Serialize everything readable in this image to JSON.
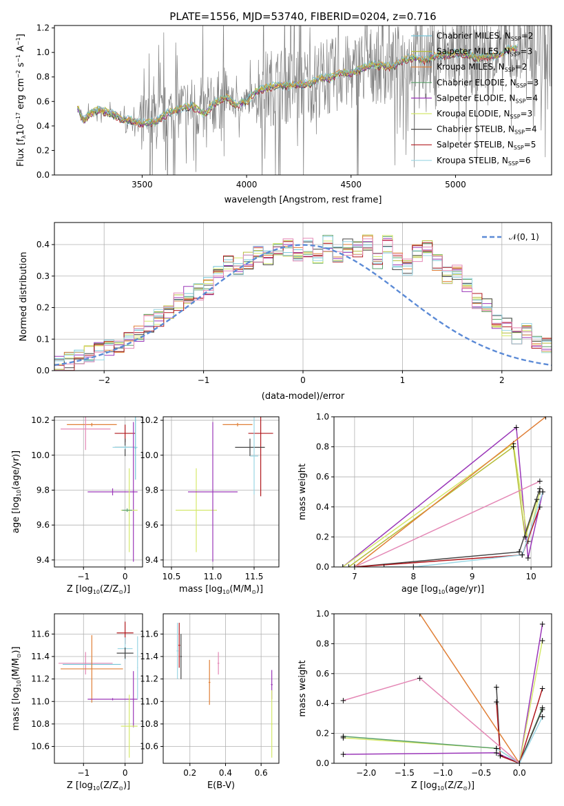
{
  "title": "PLATE=1556, MJD=53740, FIBERID=0204, z=0.716",
  "colors": {
    "Chabrier MILES": "#74c4d6",
    "Salpeter MILES": "#b5bd3a",
    "Kroupa MILES": "#e07f36",
    "Chabrier ELODIE": "#5aa06a",
    "Salpeter ELODIE": "#9a36b8",
    "Kroupa ELODIE": "#d4e86a",
    "Chabrier STELIB": "#444444",
    "Salpeter STELIB": "#b0171c",
    "Kroupa STELIB": "#9ad6e4",
    "data": "#7f7f7f",
    "gauss": "#5b8ad6",
    "pink": "#e487b5"
  },
  "chart_data": [
    {
      "type": "line",
      "title": "PLATE=1556, MJD=53740, FIBERID=0204, z=0.716",
      "xlabel": "wavelength [Angstrom, rest frame]",
      "ylabel_main": "Flux [f",
      "ylabel_sub": "λ",
      "ylabel_rest": "10",
      "ylabel_exp": "−17",
      "ylabel_units": " erg cm",
      "ylabel_exp2": "−2",
      "ylabel_s": " s",
      "ylabel_exp3": "−1",
      "ylabel_A": " A",
      "ylabel_exp4": "−1",
      "ylabel_end": "]",
      "xlim": [
        3080,
        5460
      ],
      "ylim": [
        0,
        1.22
      ],
      "xticks": [
        3500,
        4000,
        4500,
        5000
      ],
      "xtick_labels": [
        "3500",
        "4000",
        "4500",
        "5000"
      ],
      "yticks": [
        0,
        0.2,
        0.4,
        0.6,
        0.8,
        1.0,
        1.2
      ],
      "ytick_labels": [
        "0.0",
        "0.2",
        "0.4",
        "0.6",
        "0.8",
        "1.0",
        "1.2"
      ],
      "model_x": [
        3190,
        3220,
        3250,
        3300,
        3350,
        3400,
        3450,
        3500,
        3560,
        3620,
        3680,
        3740,
        3800,
        3850,
        3900,
        3950,
        4000,
        4050,
        4100,
        4150,
        4200,
        4250,
        4300,
        4350,
        4400,
        4450,
        4500,
        4550,
        4600,
        4650,
        4700,
        4750,
        4800,
        4850,
        4900,
        4950,
        5000,
        5050,
        5100,
        5150,
        5200,
        5250,
        5300
      ],
      "model_y": [
        0.55,
        0.44,
        0.5,
        0.53,
        0.5,
        0.46,
        0.44,
        0.42,
        0.43,
        0.5,
        0.54,
        0.56,
        0.5,
        0.59,
        0.64,
        0.57,
        0.6,
        0.69,
        0.71,
        0.73,
        0.73,
        0.74,
        0.74,
        0.79,
        0.79,
        0.84,
        0.82,
        0.87,
        0.9,
        0.89,
        0.88,
        0.94,
        0.96,
        0.93,
        0.97,
        0.98,
        0.99,
        0.99,
        0.95,
        0.97,
        0.97,
        1.02,
        1.03
      ],
      "legend": [
        {
          "name": "Chabrier MILES",
          "nssp": "2"
        },
        {
          "name": "Salpeter MILES",
          "nssp": "3"
        },
        {
          "name": "Kroupa MILES",
          "nssp": "2"
        },
        {
          "name": "Chabrier ELODIE",
          "nssp": "3"
        },
        {
          "name": "Salpeter ELODIE",
          "nssp": "4"
        },
        {
          "name": "Kroupa ELODIE",
          "nssp": "3"
        },
        {
          "name": "Chabrier STELIB",
          "nssp": "4"
        },
        {
          "name": "Salpeter STELIB",
          "nssp": "5"
        },
        {
          "name": "Kroupa STELIB",
          "nssp": "6"
        }
      ],
      "legend_label_n": "N",
      "legend_label_sub": "SSP",
      "legend_placement": "upper-right"
    },
    {
      "type": "bar",
      "xlabel": "(data-model)/error",
      "ylabel": "Normed distribution",
      "xlim": [
        -2.5,
        2.5
      ],
      "ylim": [
        0,
        0.47
      ],
      "xticks": [
        -2,
        -1,
        0,
        1,
        2
      ],
      "xtick_labels": [
        "−2",
        "−1",
        "0",
        "1",
        "2"
      ],
      "yticks": [
        0,
        0.1,
        0.2,
        0.3,
        0.4
      ],
      "ytick_labels": [
        "0.0",
        "0.1",
        "0.2",
        "0.3",
        "0.4"
      ],
      "bin_width": 0.1,
      "bin_start": -2.5,
      "hist_values": [
        0.02,
        0.03,
        0.04,
        0.05,
        0.06,
        0.07,
        0.08,
        0.1,
        0.12,
        0.15,
        0.17,
        0.19,
        0.22,
        0.24,
        0.25,
        0.27,
        0.31,
        0.34,
        0.33,
        0.35,
        0.37,
        0.36,
        0.38,
        0.39,
        0.37,
        0.39,
        0.36,
        0.4,
        0.37,
        0.39,
        0.38,
        0.41,
        0.35,
        0.4,
        0.35,
        0.33,
        0.37,
        0.39,
        0.34,
        0.3,
        0.31,
        0.28,
        0.22,
        0.2,
        0.16,
        0.14,
        0.11,
        0.12,
        0.1,
        0.08
      ],
      "gauss_label": "𝒩(0, 1)",
      "legend_placement": "upper-right",
      "grid": true
    },
    {
      "type": "scatter",
      "xlabel": "Z [log",
      "xlabel_sub": "10",
      "xlabel_rest": "(Z/Z",
      "xlabel_sun": "⊙",
      "xlabel_end": ")]",
      "ylabel": "age  [log",
      "ylabel_sub": "10",
      "ylabel_rest": "(age/yr)]",
      "xlim": [
        -1.7,
        0.42
      ],
      "ylim": [
        9.36,
        10.22
      ],
      "xticks": [
        -1,
        0
      ],
      "xtick_labels": [
        "−1",
        "0"
      ],
      "yticks": [
        9.4,
        9.6,
        9.8,
        10.0,
        10.2
      ],
      "ytick_labels": [
        "9.4",
        "9.6",
        "9.8",
        "10.0",
        "10.2"
      ],
      "grid": true
    },
    {
      "type": "scatter",
      "xlabel": "mass [log",
      "xlabel_sub": "10",
      "xlabel_rest": "(M/M",
      "xlabel_sun": "⊙",
      "xlabel_end": ")]",
      "xlim": [
        10.4,
        11.8
      ],
      "ylim": [
        9.36,
        10.22
      ],
      "xticks": [
        10.5,
        11.0,
        11.5
      ],
      "xtick_labels": [
        "10.5",
        "11.0",
        "11.5"
      ],
      "yticks": [
        9.4,
        9.6,
        9.8,
        10.0,
        10.2
      ],
      "ytick_labels": [
        "9.4",
        "9.6",
        "9.8",
        "10.0",
        "10.2"
      ],
      "grid": true
    },
    {
      "type": "line",
      "xlabel": "age  [log",
      "xlabel_sub": "10",
      "xlabel_rest": "(age/yr)]",
      "ylabel": "mass weight",
      "xlim": [
        6.65,
        10.35
      ],
      "ylim": [
        0,
        1.0
      ],
      "xticks": [
        7,
        8,
        9,
        10
      ],
      "xtick_labels": [
        "7",
        "8",
        "9",
        "10"
      ],
      "yticks": [
        0,
        0.2,
        0.4,
        0.6,
        0.8,
        1.0
      ],
      "ytick_labels": [
        "0.0",
        "0.2",
        "0.4",
        "0.6",
        "0.8",
        "1.0"
      ],
      "grid": true
    },
    {
      "type": "scatter",
      "xlabel": "Z [log",
      "xlabel_sub": "10",
      "xlabel_rest": "(Z/Z",
      "xlabel_sun": "⊙",
      "xlabel_end": ")]",
      "ylabel": "mass [log",
      "ylabel_sub": "10",
      "ylabel_rest": "(M/M",
      "ylabel_sun": "⊙",
      "ylabel_end": ")]",
      "xlim": [
        -1.7,
        0.42
      ],
      "ylim": [
        10.45,
        11.78
      ],
      "xticks": [
        -1,
        0
      ],
      "xtick_labels": [
        "−1",
        "0"
      ],
      "yticks": [
        10.6,
        10.8,
        11.0,
        11.2,
        11.4,
        11.6
      ],
      "ytick_labels": [
        "10.6",
        "10.8",
        "11.0",
        "11.2",
        "11.4",
        "11.6"
      ],
      "grid": true
    },
    {
      "type": "scatter",
      "xlabel": "E(B-V)",
      "xlim": [
        0.05,
        0.7
      ],
      "ylim": [
        10.45,
        11.78
      ],
      "xticks": [
        0.2,
        0.4,
        0.6
      ],
      "xtick_labels": [
        "0.2",
        "0.4",
        "0.6"
      ],
      "yticks": [
        10.6,
        10.8,
        11.0,
        11.2,
        11.4,
        11.6
      ],
      "ytick_labels": [
        "10.6",
        "10.8",
        "11.0",
        "11.2",
        "11.4",
        "11.6"
      ],
      "grid": true
    },
    {
      "type": "line",
      "xlabel": "Z [log",
      "xlabel_sub": "10",
      "xlabel_rest": "(Z/Z",
      "xlabel_sun": "⊙",
      "xlabel_end": ")]",
      "ylabel": "mass weight",
      "xlim": [
        -2.42,
        0.42
      ],
      "ylim": [
        0,
        1.0
      ],
      "xticks": [
        -2.0,
        -1.5,
        -1.0,
        -0.5,
        0.0
      ],
      "xtick_labels": [
        "−2.0",
        "−1.5",
        "−1.0",
        "−0.5",
        "0.0"
      ],
      "yticks": [
        0,
        0.2,
        0.4,
        0.6,
        0.8,
        1.0
      ],
      "ytick_labels": [
        "0.0",
        "0.2",
        "0.4",
        "0.6",
        "0.8",
        "1.0"
      ],
      "grid": true
    }
  ]
}
